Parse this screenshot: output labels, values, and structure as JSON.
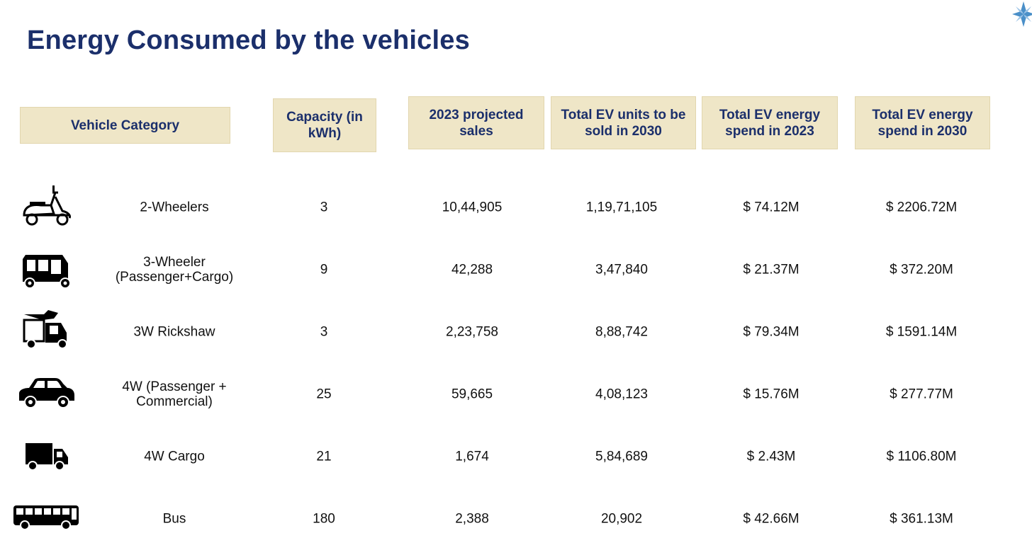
{
  "title": "Energy Consumed by the vehicles",
  "colors": {
    "title": "#1b2f6b",
    "header_bg": "#efe6c7",
    "accent": "#4a8fc8"
  },
  "headers": {
    "vehicle_category": "Vehicle Category",
    "capacity": "Capacity (in kWh)",
    "projected_sales_2023": "2023 projected sales",
    "units_2030": "Total EV units to be sold in 2030",
    "spend_2023": "Total EV energy spend in 2023",
    "spend_2030": "Total EV energy spend  in 2030"
  },
  "rows": [
    {
      "icon": "scooter-icon",
      "category": "2-Wheelers",
      "capacity": "3",
      "sales_2023": "10,44,905",
      "units_2030": "1,19,71,105",
      "spend_2023": "$ 74.12M",
      "spend_2030": "$ 2206.72M"
    },
    {
      "icon": "auto-rickshaw-icon",
      "category": "3-Wheeler (Passenger+Cargo)",
      "capacity": "9",
      "sales_2023": "42,288",
      "units_2030": "3,47,840",
      "spend_2023": "$ 21.37M",
      "spend_2030": "$ 372.20M"
    },
    {
      "icon": "cargo-rickshaw-icon",
      "category": "3W Rickshaw",
      "capacity": "3",
      "sales_2023": "2,23,758",
      "units_2030": "8,88,742",
      "spend_2023": "$ 79.34M",
      "spend_2030": "$ 1591.14M"
    },
    {
      "icon": "car-icon",
      "category": "4W (Passenger + Commercial)",
      "capacity": "25",
      "sales_2023": "59,665",
      "units_2030": "4,08,123",
      "spend_2023": "$ 15.76M",
      "spend_2030": "$ 277.77M"
    },
    {
      "icon": "truck-icon",
      "category": "4W Cargo",
      "capacity": "21",
      "sales_2023": "1,674",
      "units_2030": "5,84,689",
      "spend_2023": "$ 2.43M",
      "spend_2030": "$ 1106.80M"
    },
    {
      "icon": "bus-icon",
      "category": "Bus",
      "capacity": "180",
      "sales_2023": "2,388",
      "units_2030": "20,902",
      "spend_2023": "$ 42.66M",
      "spend_2030": "$ 361.13M"
    }
  ]
}
